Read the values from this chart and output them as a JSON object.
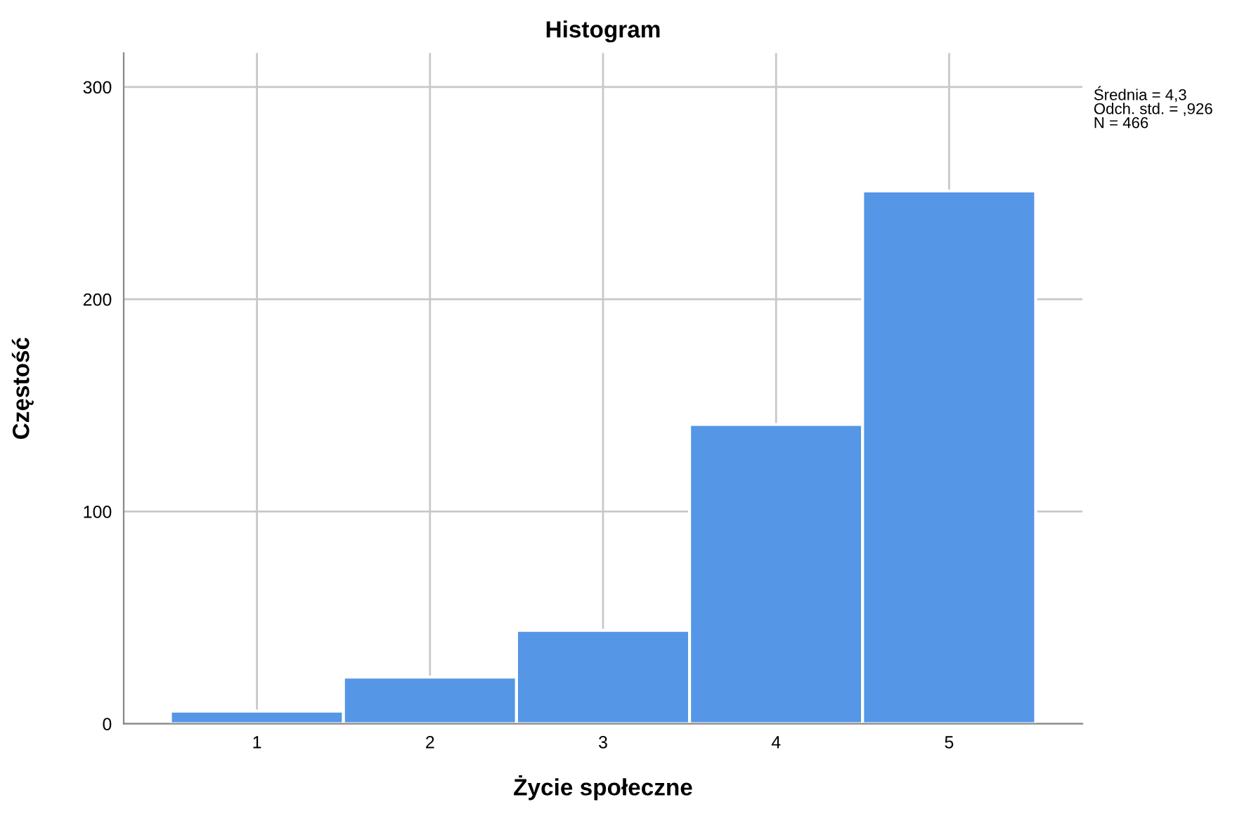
{
  "chart_data": {
    "type": "histogram",
    "title": "Histogram",
    "xlabel": "Życie społeczne",
    "ylabel": "Częstość",
    "bins": [
      0.5,
      1.5,
      2.5,
      3.5,
      4.5,
      5.5
    ],
    "values": [
      6,
      22,
      44,
      141,
      251
    ],
    "color": "#5596e6",
    "xlim": [
      0.23,
      5.77
    ],
    "xticks": [
      1,
      2,
      3,
      4,
      5
    ],
    "ylim": [
      0,
      316
    ],
    "yticks": [
      0,
      100,
      200,
      300
    ],
    "grid": true,
    "annotations": [
      "Średnia = 4,3\nOdch. std. = ,926\nN = 466"
    ]
  }
}
